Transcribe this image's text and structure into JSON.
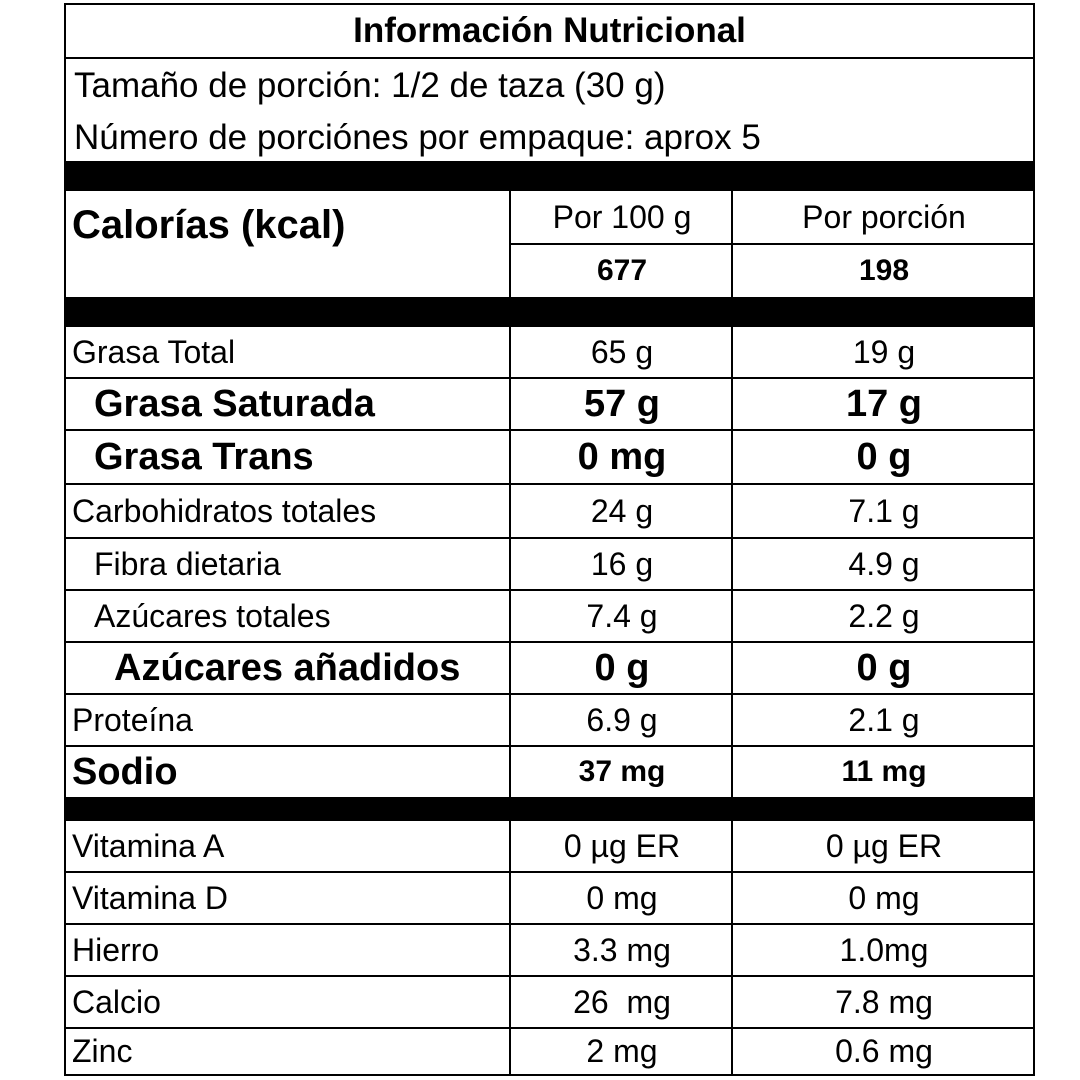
{
  "title": "Información Nutricional",
  "serving_size": "Tamaño de porción: 1/2 de taza (30 g)",
  "servings_per_package": "Número de porciónes por empaque: aprox 5",
  "calories": {
    "label": "Calorías (kcal)",
    "col1_header": "Por 100 g",
    "col2_header": "Por porción",
    "per_100g": "677",
    "per_serving": "198"
  },
  "nutrients": [
    {
      "name": "Grasa Total",
      "per_100g": "65 g",
      "per_serving": "19 g"
    },
    {
      "name": "Grasa Saturada",
      "per_100g": "57 g",
      "per_serving": "17 g"
    },
    {
      "name": "Grasa Trans",
      "per_100g": "0 mg",
      "per_serving": "0 g"
    },
    {
      "name": "Carbohidratos totales",
      "per_100g": "24 g",
      "per_serving": "7.1 g"
    },
    {
      "name": "Fibra dietaria",
      "per_100g": "16 g",
      "per_serving": "4.9 g"
    },
    {
      "name": "Azúcares totales",
      "per_100g": "7.4 g",
      "per_serving": "2.2 g"
    },
    {
      "name": "Azúcares añadidos",
      "per_100g": "0 g",
      "per_serving": "0 g"
    },
    {
      "name": "Proteína",
      "per_100g": "6.9 g",
      "per_serving": "2.1 g"
    },
    {
      "name": "Sodio",
      "per_100g": "37 mg",
      "per_serving": "11 mg"
    }
  ],
  "micronutrients": [
    {
      "name": "Vitamina A",
      "per_100g": "0 µg ER",
      "per_serving": "0 µg ER"
    },
    {
      "name": "Vitamina D",
      "per_100g": "0 mg",
      "per_serving": "0 mg"
    },
    {
      "name": "Hierro",
      "per_100g": "3.3 mg",
      "per_serving": "1.0mg"
    },
    {
      "name": "Calcio",
      "per_100g": "26  mg",
      "per_serving": "7.8 mg"
    },
    {
      "name": "Zinc",
      "per_100g": "2 mg",
      "per_serving": "0.6 mg"
    }
  ]
}
